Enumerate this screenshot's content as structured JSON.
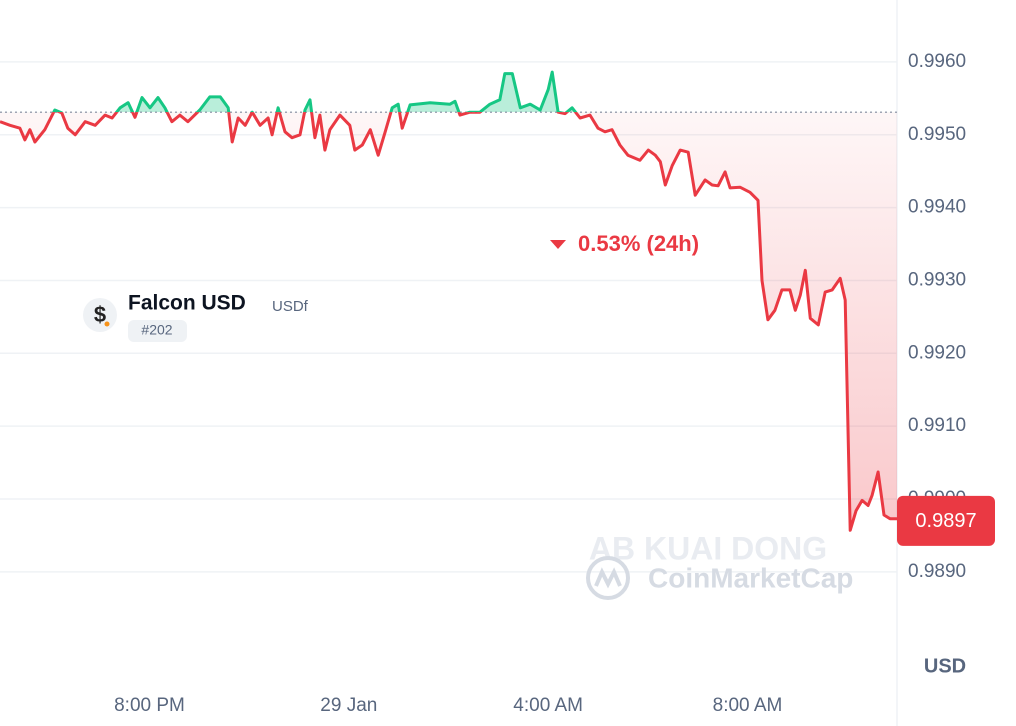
{
  "chart_data": {
    "type": "line",
    "title": "Falcon USD",
    "subtitle": "USDf",
    "rank": "#202",
    "change_label": "0.53% (24h)",
    "y_unit": "USD",
    "watermarks": [
      "AB KUAI DONG",
      "CoinMarketCap"
    ],
    "xlim": [
      17,
      35
    ],
    "ylim": [
      0.98757,
      0.99685
    ],
    "xticks": [
      {
        "value": 20,
        "label": "8:00 PM"
      },
      {
        "value": 24,
        "label": "29 Jan"
      },
      {
        "value": 28,
        "label": "4:00 AM"
      },
      {
        "value": 32,
        "label": "8:00 AM"
      }
    ],
    "yticks": [
      {
        "value": 0.996,
        "label": "0.9960"
      },
      {
        "value": 0.995,
        "label": "0.9950"
      },
      {
        "value": 0.994,
        "label": "0.9940"
      },
      {
        "value": 0.993,
        "label": "0.9930"
      },
      {
        "value": 0.992,
        "label": "0.9920"
      },
      {
        "value": 0.991,
        "label": "0.9910"
      },
      {
        "value": 0.99,
        "label": "0.9900"
      },
      {
        "value": 0.989,
        "label": "0.9890"
      }
    ],
    "grid": true,
    "baseline": 0.99531,
    "last_price": 0.9897,
    "colors": {
      "up": "#16c784",
      "down": "#ea3943"
    },
    "x": [
      17.0,
      17.2,
      17.4,
      17.5,
      17.6,
      17.7,
      17.9,
      18.1,
      18.24,
      18.36,
      18.51,
      18.71,
      18.91,
      19.11,
      19.25,
      19.41,
      19.57,
      19.71,
      19.85,
      20.01,
      20.17,
      20.31,
      20.45,
      20.61,
      20.77,
      21.01,
      21.21,
      21.42,
      21.58,
      21.66,
      21.78,
      21.92,
      22.06,
      22.22,
      22.38,
      22.46,
      22.58,
      22.72,
      22.86,
      23.02,
      23.12,
      23.22,
      23.32,
      23.42,
      23.52,
      23.62,
      23.82,
      24.02,
      24.12,
      24.27,
      24.43,
      24.59,
      24.73,
      24.87,
      24.99,
      25.07,
      25.23,
      25.63,
      26.03,
      26.13,
      26.23,
      26.43,
      26.63,
      26.83,
      27.03,
      27.13,
      27.28,
      27.44,
      27.64,
      27.84,
      28.0,
      28.08,
      28.2,
      28.34,
      28.48,
      28.64,
      28.84,
      29.0,
      29.14,
      29.28,
      29.44,
      29.6,
      29.84,
      30.01,
      30.15,
      30.25,
      30.35,
      30.49,
      30.65,
      30.81,
      30.95,
      31.15,
      31.29,
      31.41,
      31.55,
      31.65,
      31.85,
      32.05,
      32.21,
      32.29,
      32.41,
      32.55,
      32.69,
      32.85,
      32.96,
      33.06,
      33.16,
      33.26,
      33.42,
      33.56,
      33.7,
      33.86,
      33.96,
      34.06,
      34.18,
      34.3,
      34.42,
      34.5,
      34.62,
      34.74,
      34.86,
      35.0
    ],
    "values": [
      0.99518,
      0.99513,
      0.99509,
      0.99493,
      0.99507,
      0.9949,
      0.99507,
      0.99534,
      0.9953,
      0.99509,
      0.995,
      0.99518,
      0.99513,
      0.99527,
      0.99523,
      0.99537,
      0.99544,
      0.99524,
      0.99551,
      0.99537,
      0.99551,
      0.99537,
      0.99518,
      0.99527,
      0.99518,
      0.99534,
      0.99552,
      0.99552,
      0.99537,
      0.9949,
      0.99523,
      0.99513,
      0.99531,
      0.99513,
      0.99523,
      0.995,
      0.99537,
      0.99504,
      0.99496,
      0.995,
      0.99534,
      0.99548,
      0.99496,
      0.99527,
      0.99479,
      0.99507,
      0.99527,
      0.99513,
      0.99479,
      0.99486,
      0.99507,
      0.99472,
      0.99504,
      0.99537,
      0.99542,
      0.99509,
      0.99541,
      0.99544,
      0.99542,
      0.99546,
      0.99527,
      0.99531,
      0.99531,
      0.99542,
      0.99548,
      0.99584,
      0.99584,
      0.99537,
      0.99542,
      0.99534,
      0.99562,
      0.99586,
      0.99531,
      0.99529,
      0.99537,
      0.99523,
      0.99527,
      0.99509,
      0.99504,
      0.99507,
      0.99486,
      0.99472,
      0.99465,
      0.99479,
      0.99472,
      0.99463,
      0.99431,
      0.99458,
      0.99479,
      0.99476,
      0.99417,
      0.99438,
      0.99431,
      0.9943,
      0.99449,
      0.99427,
      0.99428,
      0.99421,
      0.9941,
      0.993,
      0.99246,
      0.99259,
      0.99287,
      0.99287,
      0.99259,
      0.9928,
      0.99314,
      0.99248,
      0.99239,
      0.99284,
      0.99287,
      0.99303,
      0.99273,
      0.98957,
      0.98984,
      0.98998,
      0.98991,
      0.99005,
      0.99037,
      0.98978,
      0.98973,
      0.98973
    ]
  }
}
